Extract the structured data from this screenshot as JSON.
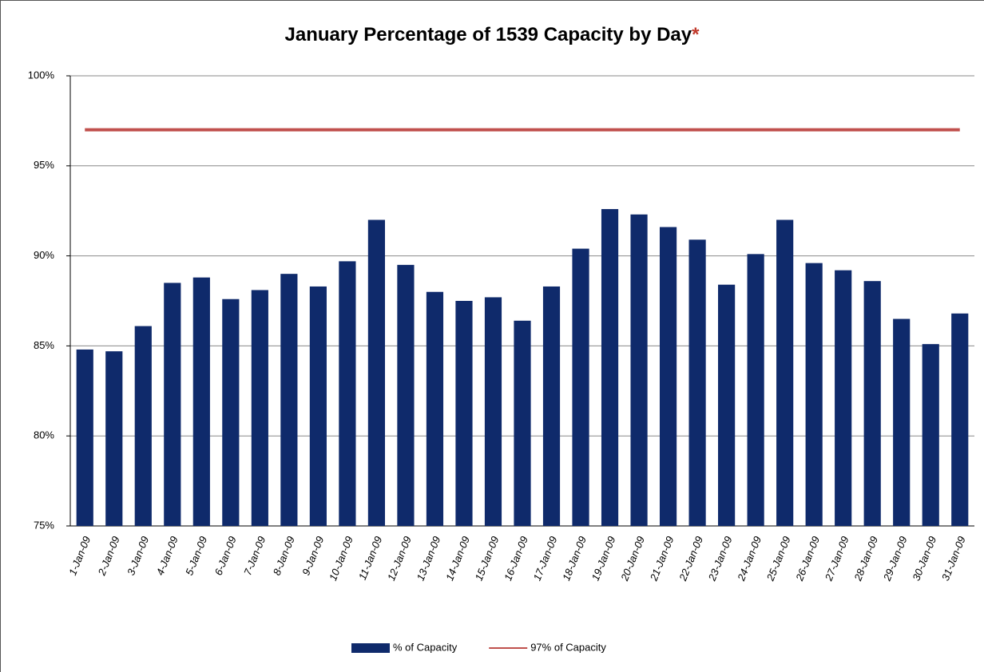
{
  "chart_data": {
    "type": "bar",
    "title": "January Percentage of 1539 Capacity by Day",
    "title_note": "*",
    "categories": [
      "1-Jan-09",
      "2-Jan-09",
      "3-Jan-09",
      "4-Jan-09",
      "5-Jan-09",
      "6-Jan-09",
      "7-Jan-09",
      "8-Jan-09",
      "9-Jan-09",
      "10-Jan-09",
      "11-Jan-09",
      "12-Jan-09",
      "13-Jan-09",
      "14-Jan-09",
      "15-Jan-09",
      "16-Jan-09",
      "17-Jan-09",
      "18-Jan-09",
      "19-Jan-09",
      "20-Jan-09",
      "21-Jan-09",
      "22-Jan-09",
      "23-Jan-09",
      "24-Jan-09",
      "25-Jan-09",
      "26-Jan-09",
      "27-Jan-09",
      "28-Jan-09",
      "29-Jan-09",
      "30-Jan-09",
      "31-Jan-09"
    ],
    "series": [
      {
        "name": "% of Capacity",
        "type": "bar",
        "color": "#0f2a6b",
        "values": [
          84.8,
          84.7,
          86.1,
          88.5,
          88.8,
          87.6,
          88.1,
          89.0,
          88.3,
          89.7,
          92.0,
          89.5,
          88.0,
          87.5,
          87.7,
          86.4,
          88.3,
          90.4,
          92.6,
          92.3,
          91.6,
          90.9,
          88.4,
          90.1,
          92.0,
          89.6,
          89.2,
          88.6,
          86.5,
          85.1,
          86.8
        ]
      },
      {
        "name": "97% of Capacity",
        "type": "line",
        "color": "#c0504d",
        "values": [
          97,
          97,
          97,
          97,
          97,
          97,
          97,
          97,
          97,
          97,
          97,
          97,
          97,
          97,
          97,
          97,
          97,
          97,
          97,
          97,
          97,
          97,
          97,
          97,
          97,
          97,
          97,
          97,
          97,
          97,
          97
        ]
      }
    ],
    "ylim": [
      75,
      100
    ],
    "yticks": [
      {
        "value": 75,
        "label": "75%"
      },
      {
        "value": 80,
        "label": "80%"
      },
      {
        "value": 85,
        "label": "85%"
      },
      {
        "value": 90,
        "label": "90%"
      },
      {
        "value": 95,
        "label": "95%"
      },
      {
        "value": 100,
        "label": "100%"
      }
    ],
    "grid": true,
    "legend": "bottom"
  }
}
